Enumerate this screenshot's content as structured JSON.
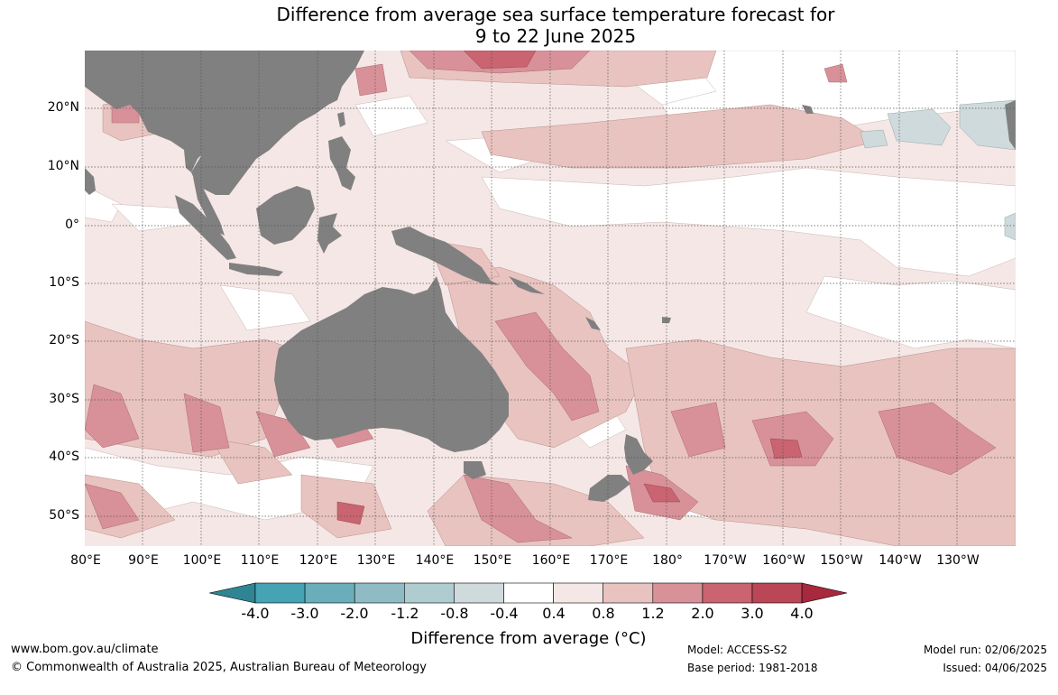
{
  "title_line1": "Difference from average sea surface temperature forecast for",
  "title_line2": "9 to 22 June 2025",
  "lat_labels": [
    "20°N",
    "10°N",
    "0°",
    "10°S",
    "20°S",
    "30°S",
    "40°S",
    "50°S"
  ],
  "lon_labels": [
    "80°E",
    "90°E",
    "100°E",
    "110°E",
    "120°E",
    "130°E",
    "140°E",
    "150°E",
    "160°E",
    "170°E",
    "180°",
    "170°W",
    "160°W",
    "150°W",
    "140°W",
    "130°W"
  ],
  "colorbar": {
    "ticks": [
      "-4.0",
      "-3.0",
      "-2.0",
      "-1.2",
      "-0.8",
      "-0.4",
      "0.4",
      "0.8",
      "1.2",
      "2.0",
      "3.0",
      "4.0"
    ],
    "colors": [
      "#2f8593",
      "#45a3b3",
      "#6aaebb",
      "#8fbcc4",
      "#afccd0",
      "#cfdadc",
      "#ffffff",
      "#f5e7e5",
      "#e8c3bf",
      "#d89198",
      "#c96470",
      "#bb4655",
      "#a8283e"
    ],
    "label": "Difference from average (°C)"
  },
  "footer": {
    "url": "www.bom.gov.au/climate",
    "copyright": "© Commonwealth of Australia 2025, Australian Bureau of Meteorology",
    "model": "Model: ACCESS-S2",
    "base_period": "Base period: 1981-2018",
    "model_run": "Model run: 02/06/2025",
    "issued": "Issued: 04/06/2025"
  },
  "colors": {
    "land": "#808080",
    "grid": "#555555"
  }
}
